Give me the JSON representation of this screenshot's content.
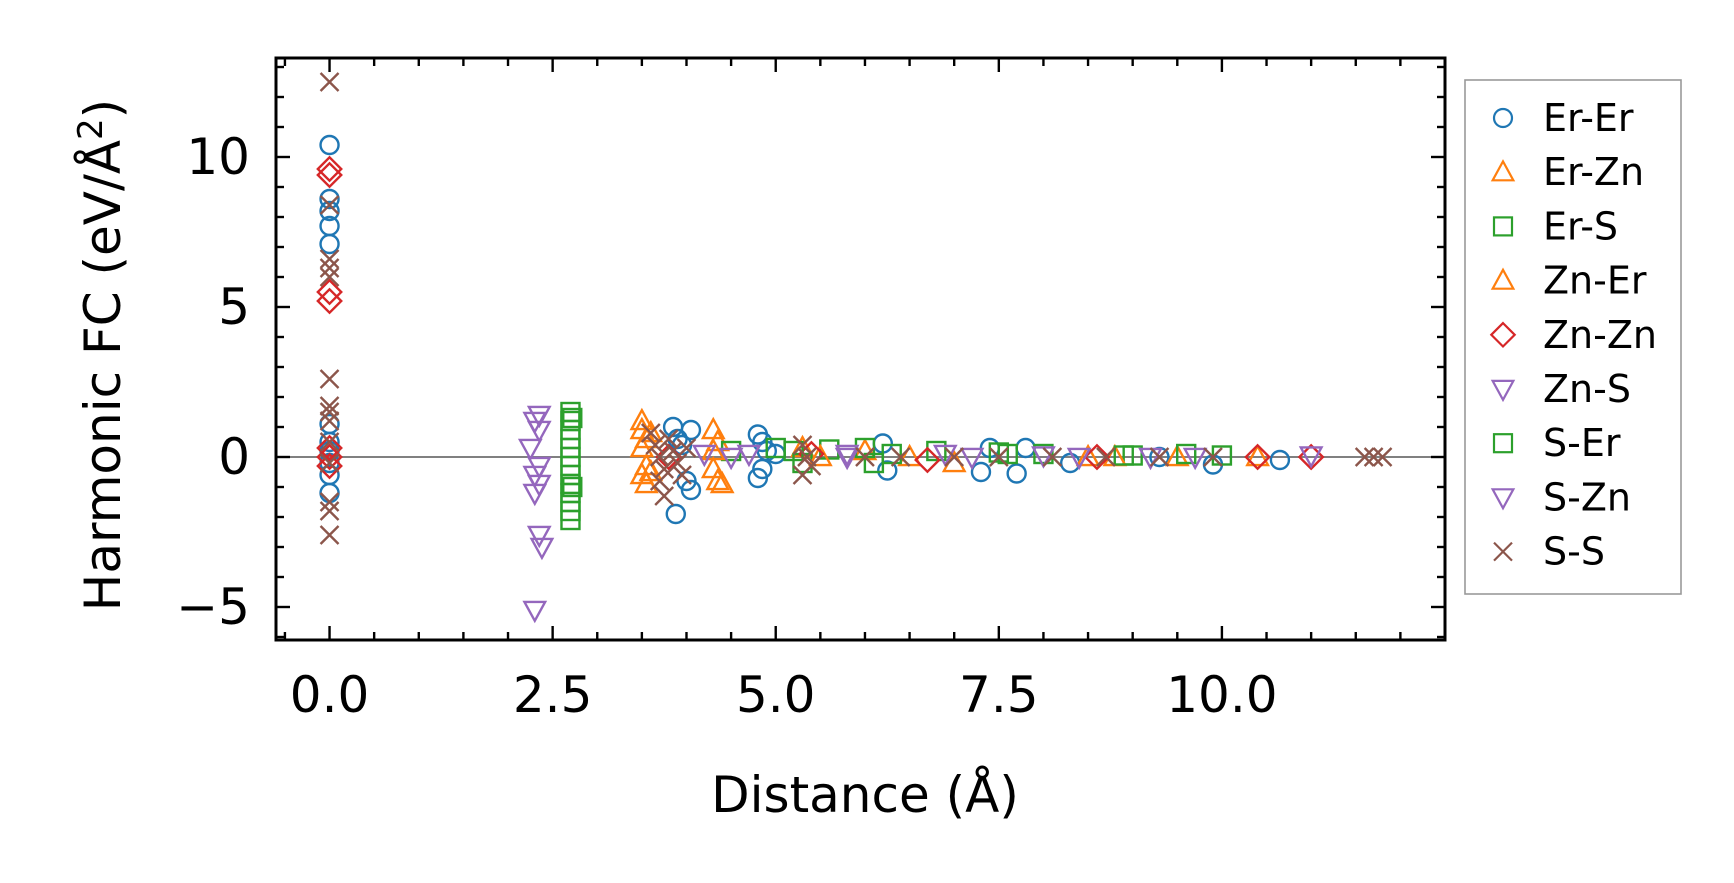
{
  "chart_data": {
    "type": "scatter",
    "title": "",
    "xlabel": "Distance (Å)",
    "ylabel": "Harmonic FC (eV/Å²)",
    "ylabel_main": "Harmonic FC (eV/Å",
    "ylabel_sup": "2",
    "ylabel_tail": ")",
    "xlim": [
      -0.6,
      12.5
    ],
    "ylim": [
      -6.1,
      13.3
    ],
    "xticks": [
      0,
      2.5,
      5,
      7.5,
      10
    ],
    "xtick_labels": [
      "0.0",
      "2.5",
      "5.0",
      "7.5",
      "10.0"
    ],
    "yticks": [
      -5,
      0,
      5,
      10
    ],
    "ytick_labels": [
      "−5",
      "0",
      "5",
      "10"
    ],
    "grid": false,
    "zero_line": true,
    "legend_position": "outside-right",
    "series": [
      {
        "name": "Er-Er",
        "marker": "circle",
        "color": "#1f77b4",
        "points": [
          [
            0,
            10.4
          ],
          [
            0,
            8.6
          ],
          [
            0,
            8.2
          ],
          [
            0,
            7.7
          ],
          [
            0,
            7.1
          ],
          [
            0,
            1.1
          ],
          [
            0,
            0.5
          ],
          [
            0,
            0.2
          ],
          [
            0,
            -0.2
          ],
          [
            0,
            -0.6
          ],
          [
            0,
            -1.2
          ],
          [
            3.85,
            1.0
          ],
          [
            3.9,
            0.6
          ],
          [
            3.88,
            -1.9
          ],
          [
            3.95,
            0.4
          ],
          [
            4.05,
            0.9
          ],
          [
            4.05,
            -1.1
          ],
          [
            4.0,
            -0.8
          ],
          [
            4.8,
            0.75
          ],
          [
            4.85,
            0.5
          ],
          [
            4.8,
            -0.7
          ],
          [
            4.85,
            -0.4
          ],
          [
            4.9,
            0.2
          ],
          [
            5.0,
            0.1
          ],
          [
            6.2,
            0.45
          ],
          [
            6.25,
            -0.45
          ],
          [
            7.3,
            -0.5
          ],
          [
            7.4,
            0.3
          ],
          [
            7.7,
            -0.55
          ],
          [
            7.8,
            0.3
          ],
          [
            8.3,
            -0.2
          ],
          [
            9.3,
            0.0
          ],
          [
            9.9,
            -0.25
          ],
          [
            10.65,
            -0.1
          ]
        ]
      },
      {
        "name": "Er-Zn",
        "marker": "triangle-up",
        "color": "#ff7f0e",
        "points": [
          [
            3.5,
            1.2
          ],
          [
            3.5,
            0.9
          ],
          [
            3.55,
            0.6
          ],
          [
            3.5,
            0.3
          ],
          [
            3.55,
            -0.3
          ],
          [
            3.5,
            -0.6
          ],
          [
            3.55,
            -0.9
          ],
          [
            4.3,
            0.9
          ],
          [
            4.35,
            0.5
          ],
          [
            4.3,
            -0.4
          ],
          [
            4.35,
            -0.8
          ],
          [
            4.4,
            -0.9
          ],
          [
            5.3,
            0.3
          ],
          [
            6.0,
            0.2
          ],
          [
            7.0,
            -0.2
          ],
          [
            8.5,
            0.0
          ],
          [
            9.5,
            0.0
          ],
          [
            10.4,
            0.0
          ]
        ]
      },
      {
        "name": "Er-S",
        "marker": "square",
        "color": "#2ca02c",
        "points": [
          [
            2.7,
            1.5
          ],
          [
            2.7,
            1.2
          ],
          [
            2.7,
            0.9
          ],
          [
            2.7,
            0.6
          ],
          [
            2.7,
            0.3
          ],
          [
            2.7,
            0.0
          ],
          [
            2.7,
            -0.3
          ],
          [
            2.7,
            -0.6
          ],
          [
            2.7,
            -0.9
          ],
          [
            2.7,
            -1.2
          ],
          [
            2.7,
            -1.5
          ],
          [
            2.7,
            -1.8
          ],
          [
            2.7,
            -2.1
          ],
          [
            4.5,
            0.2
          ],
          [
            5.0,
            0.3
          ],
          [
            5.3,
            -0.2
          ],
          [
            5.6,
            0.25
          ],
          [
            6.0,
            0.3
          ],
          [
            6.1,
            -0.2
          ],
          [
            6.8,
            0.2
          ],
          [
            7.5,
            0.15
          ],
          [
            8.0,
            0.1
          ],
          [
            9.0,
            0.05
          ],
          [
            9.6,
            0.1
          ],
          [
            10.0,
            0.05
          ]
        ]
      },
      {
        "name": "Zn-Er",
        "marker": "triangle-up",
        "color": "#ff7f0e",
        "points": [
          [
            3.6,
            0.8
          ],
          [
            3.6,
            -0.5
          ],
          [
            4.3,
            0.2
          ],
          [
            5.5,
            0.0
          ],
          [
            6.5,
            0.0
          ],
          [
            8.8,
            0.0
          ]
        ]
      },
      {
        "name": "Zn-Zn",
        "marker": "diamond",
        "color": "#d62728",
        "points": [
          [
            0,
            9.6
          ],
          [
            0,
            9.4
          ],
          [
            0,
            5.5
          ],
          [
            0,
            5.2
          ],
          [
            0,
            0.3
          ],
          [
            0,
            0.0
          ],
          [
            0,
            -0.3
          ],
          [
            3.8,
            0.0
          ],
          [
            5.4,
            0.1
          ],
          [
            6.7,
            -0.1
          ],
          [
            8.6,
            0.0
          ],
          [
            10.4,
            0.0
          ],
          [
            11.0,
            0.0
          ]
        ]
      },
      {
        "name": "Zn-S",
        "marker": "triangle-down",
        "color": "#9467bd",
        "points": [
          [
            2.3,
            1.2
          ],
          [
            2.35,
            0.9
          ],
          [
            2.25,
            0.3
          ],
          [
            2.35,
            -0.3
          ],
          [
            2.3,
            -0.6
          ],
          [
            2.35,
            -0.9
          ],
          [
            2.3,
            -1.2
          ],
          [
            2.35,
            -2.6
          ],
          [
            2.3,
            -5.1
          ],
          [
            4.2,
            0.1
          ],
          [
            4.7,
            0.1
          ],
          [
            5.8,
            0.1
          ],
          [
            6.9,
            0.1
          ],
          [
            8.0,
            0.05
          ],
          [
            9.2,
            0.0
          ]
        ]
      },
      {
        "name": "S-Er",
        "marker": "square",
        "color": "#2ca02c",
        "points": [
          [
            2.72,
            1.3
          ],
          [
            2.72,
            -1.0
          ],
          [
            5.2,
            0.2
          ],
          [
            6.3,
            0.1
          ],
          [
            7.6,
            0.1
          ],
          [
            8.9,
            0.05
          ]
        ]
      },
      {
        "name": "S-Zn",
        "marker": "triangle-down",
        "color": "#9467bd",
        "points": [
          [
            2.35,
            1.4
          ],
          [
            2.38,
            -3.0
          ],
          [
            4.5,
            0.0
          ],
          [
            5.8,
            0.0
          ],
          [
            7.2,
            0.0
          ],
          [
            8.4,
            0.0
          ],
          [
            9.7,
            0.0
          ],
          [
            11.0,
            0.05
          ]
        ]
      },
      {
        "name": "S-S",
        "marker": "x",
        "color": "#8c564b",
        "points": [
          [
            0,
            12.5
          ],
          [
            0,
            8.4
          ],
          [
            0,
            6.6
          ],
          [
            0,
            6.3
          ],
          [
            0,
            6.0
          ],
          [
            0,
            2.6
          ],
          [
            0,
            1.7
          ],
          [
            0,
            1.5
          ],
          [
            0,
            1.2
          ],
          [
            0,
            0.5
          ],
          [
            0,
            -0.2
          ],
          [
            0,
            -1.5
          ],
          [
            0,
            -1.8
          ],
          [
            0,
            -2.6
          ],
          [
            3.6,
            0.8
          ],
          [
            3.65,
            0.4
          ],
          [
            3.7,
            0.0
          ],
          [
            3.75,
            -0.4
          ],
          [
            3.7,
            -0.8
          ],
          [
            3.75,
            -1.3
          ],
          [
            3.8,
            0.6
          ],
          [
            3.85,
            0.2
          ],
          [
            3.9,
            -0.2
          ],
          [
            3.95,
            -0.6
          ],
          [
            4.0,
            0.3
          ],
          [
            5.3,
            0.4
          ],
          [
            5.35,
            0.0
          ],
          [
            5.4,
            -0.3
          ],
          [
            5.3,
            -0.6
          ],
          [
            6.0,
            0.0
          ],
          [
            6.4,
            0.0
          ],
          [
            7.0,
            0.0
          ],
          [
            7.5,
            0.0
          ],
          [
            8.1,
            0.0
          ],
          [
            8.7,
            0.0
          ],
          [
            9.3,
            0.0
          ],
          [
            9.9,
            0.0
          ],
          [
            11.6,
            0.0
          ],
          [
            11.7,
            0.0
          ],
          [
            11.8,
            0.0
          ]
        ]
      }
    ]
  }
}
